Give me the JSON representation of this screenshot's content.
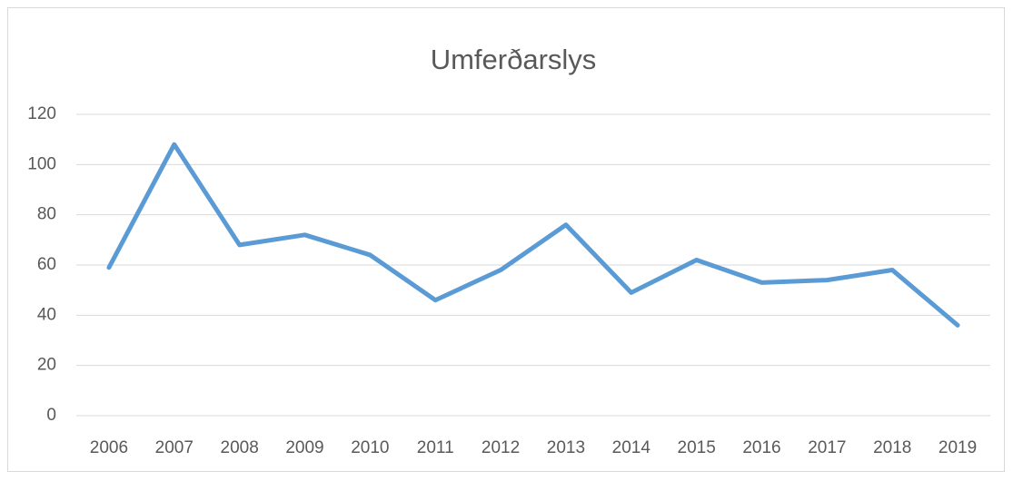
{
  "chart_data": {
    "type": "line",
    "title": "Umferðarslys",
    "categories": [
      "2006",
      "2007",
      "2008",
      "2009",
      "2010",
      "2011",
      "2012",
      "2013",
      "2014",
      "2015",
      "2016",
      "2017",
      "2018",
      "2019"
    ],
    "series": [
      {
        "name": "Umferðarslys",
        "color": "#5b9bd5",
        "values": [
          59,
          108,
          68,
          72,
          64,
          46,
          58,
          76,
          49,
          62,
          53,
          54,
          58,
          36
        ]
      }
    ],
    "ylim": [
      0,
      120
    ],
    "yticks": [
      0,
      20,
      40,
      60,
      80,
      100,
      120
    ],
    "grid": true,
    "legend": false
  }
}
